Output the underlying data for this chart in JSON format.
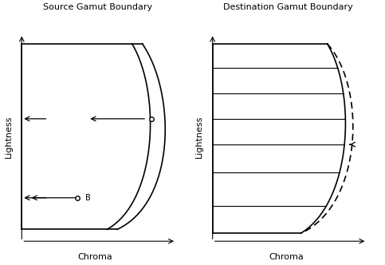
{
  "left_title": "Source Gamut Boundary",
  "right_title": "Destination Gamut Boundary",
  "left_xlabel": "Chroma",
  "right_xlabel": "Chroma",
  "ylabel": "Lightness",
  "bg_color": "#ffffff",
  "line_color": "#000000",
  "arrow_color": "#000000",
  "dashed_color": "#555555",
  "gray_color": "#888888"
}
